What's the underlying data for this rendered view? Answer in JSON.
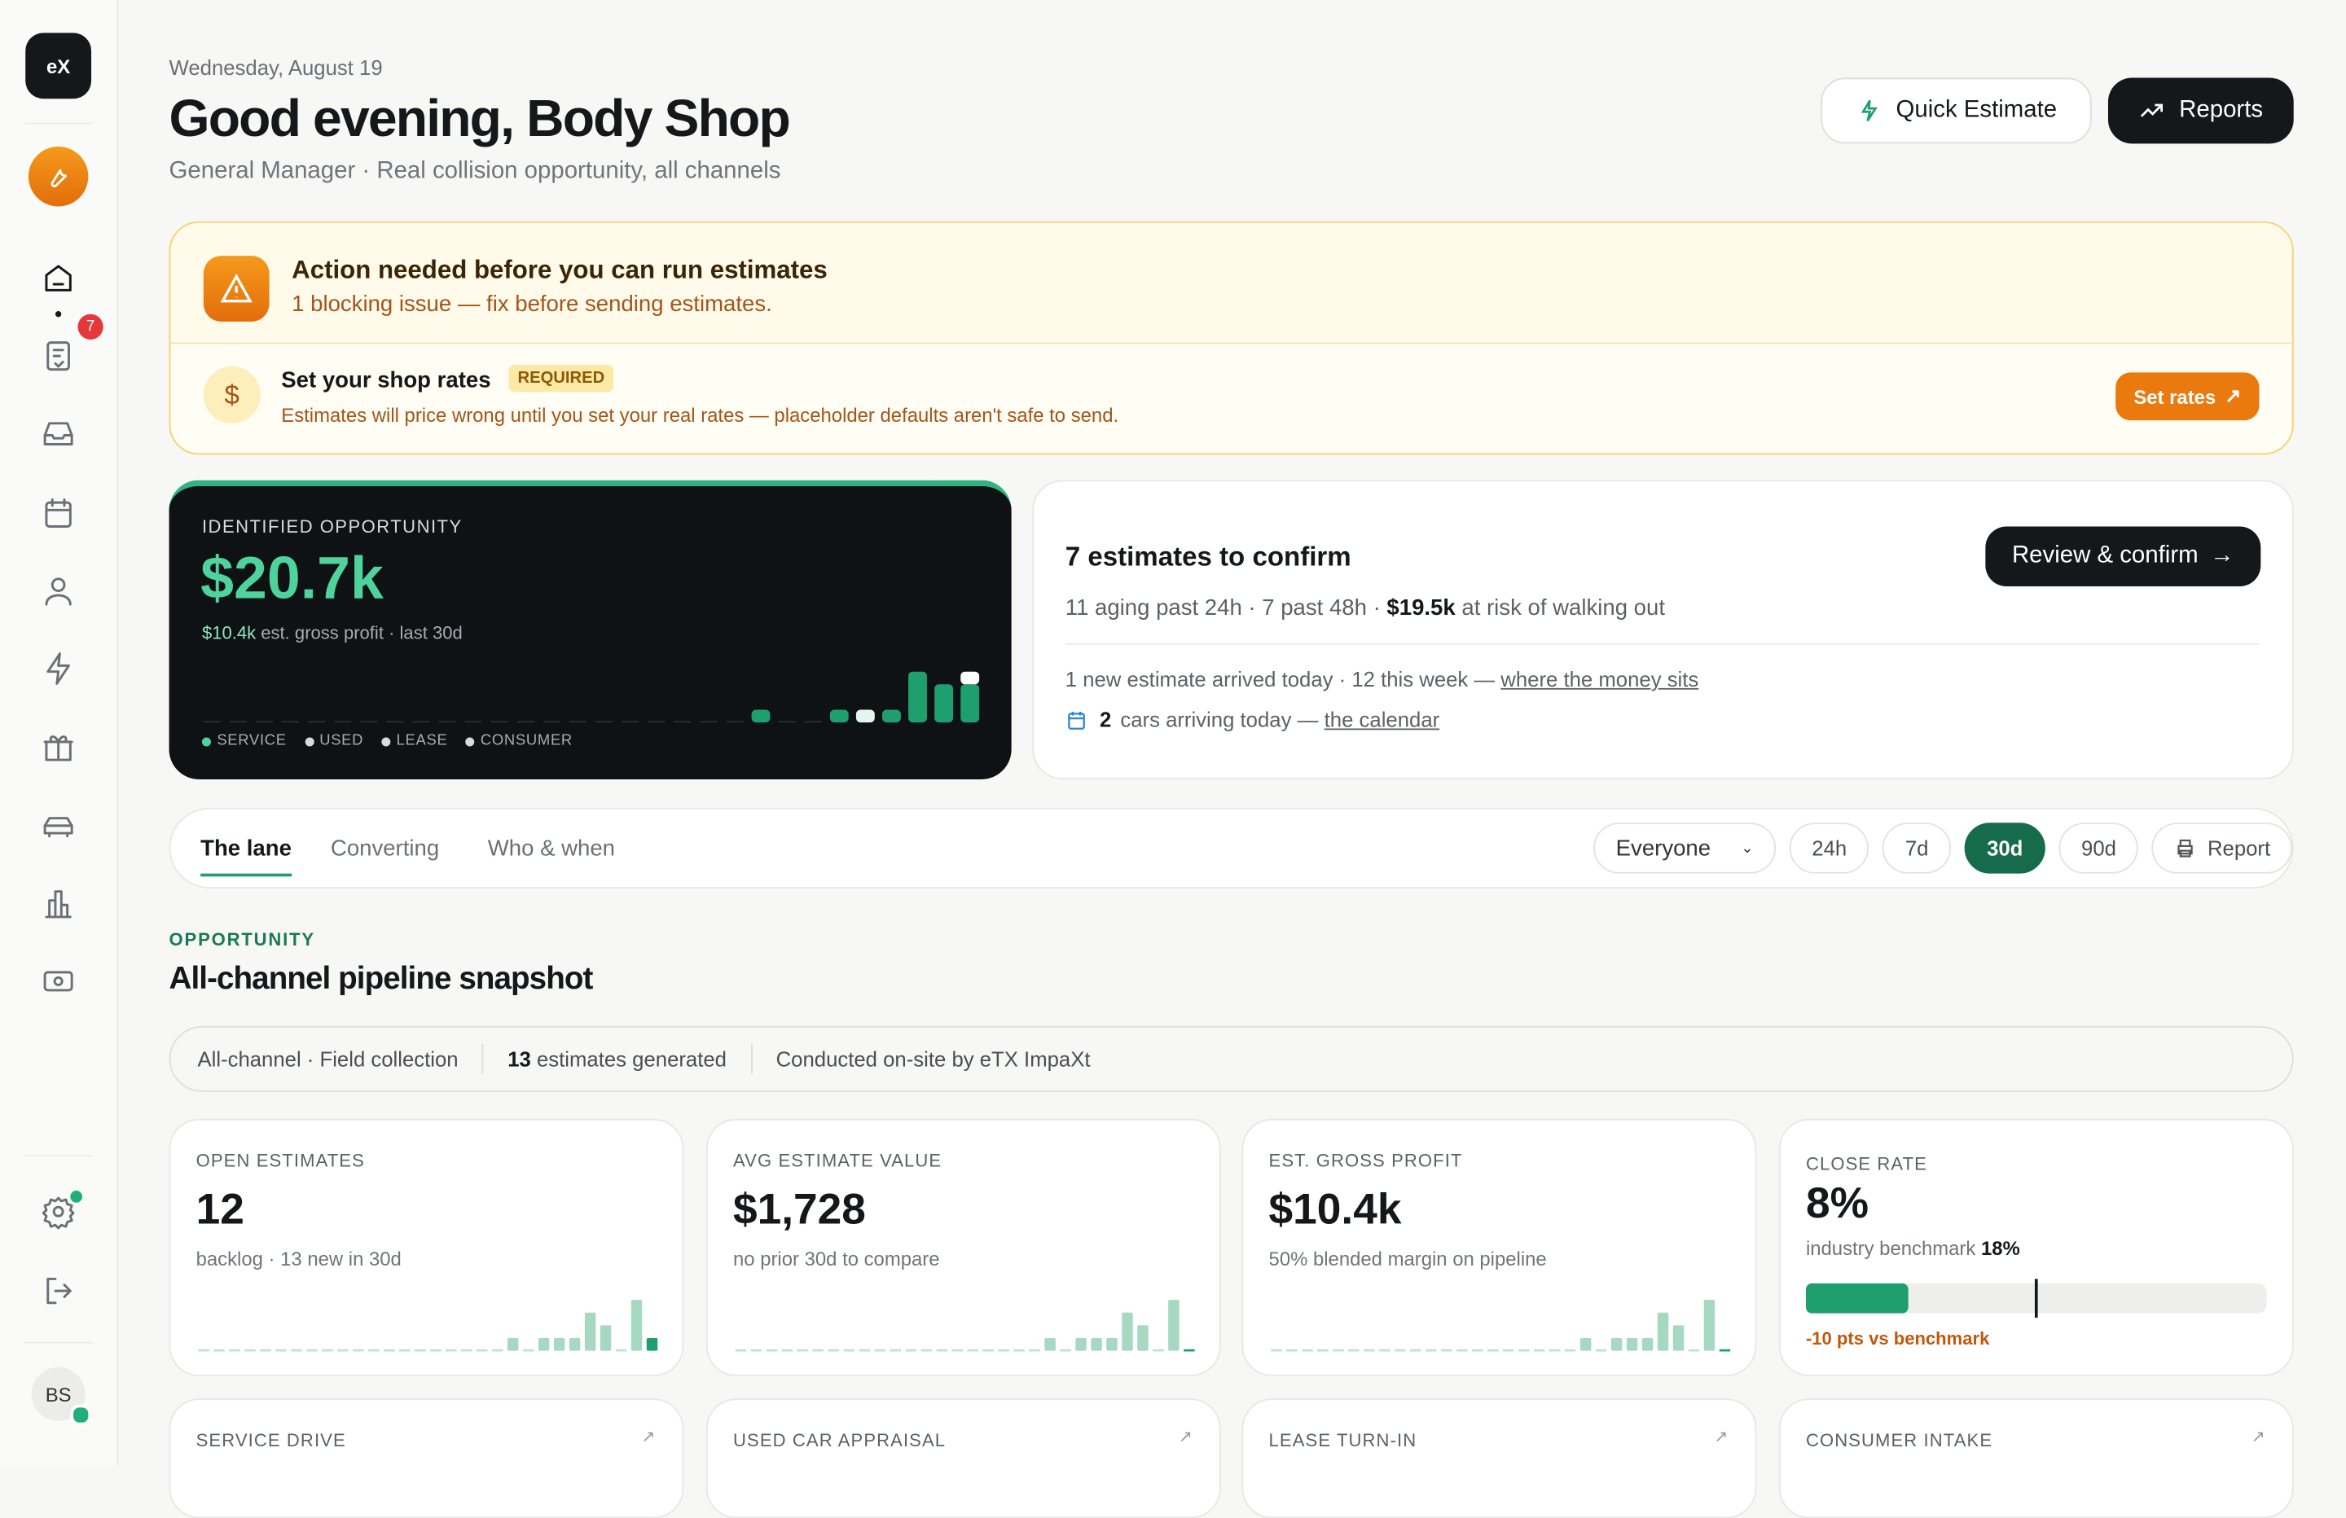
{
  "sidebar": {
    "logo": "eX",
    "badge": "7",
    "avatar": "BS"
  },
  "header": {
    "date": "Wednesday, August 19",
    "title": "Good evening, Body Shop",
    "subtitle": "General Manager · Real collision opportunity, all channels",
    "buttons": [
      "Quick Estimate",
      "Reports"
    ]
  },
  "alert": {
    "title": "Action needed before you can run estimates",
    "subtitle": "1 blocking issue — fix before sending estimates.",
    "item": {
      "icon": "$",
      "title": "Set your shop rates",
      "tag": "REQUIRED",
      "text": "Estimates will price wrong until you set your real rates — placeholder defaults aren't safe to send.",
      "button": "Set rates"
    }
  },
  "opportunity": {
    "label": "IDENTIFIED OPPORTUNITY",
    "value": "$20.7k",
    "profit": "$10.4k",
    "profit_note": "est. gross profit · last 30d",
    "chart_data": {
      "type": "stacked-bar",
      "series": [
        {
          "name": "SERVICE",
          "color": "#1f9e6e",
          "values": [
            0,
            0,
            0,
            0,
            0,
            0,
            0,
            0,
            0,
            0,
            0,
            0,
            0,
            0,
            0,
            0,
            0,
            0,
            0,
            0,
            0,
            1,
            0,
            0,
            1,
            0,
            1,
            4,
            3,
            3
          ]
        },
        {
          "name": "USED",
          "color": "#8fd6b8",
          "values": [
            0,
            0,
            0,
            0,
            0,
            0,
            0,
            0,
            0,
            0,
            0,
            0,
            0,
            0,
            0,
            0,
            0,
            0,
            0,
            0,
            0,
            0,
            0,
            0,
            0,
            0,
            0,
            0,
            0,
            0
          ]
        },
        {
          "name": "LEASE",
          "color": "#e6f4ee",
          "values": [
            0,
            0,
            0,
            0,
            0,
            0,
            0,
            0,
            0,
            0,
            0,
            0,
            0,
            0,
            0,
            0,
            0,
            0,
            0,
            0,
            0,
            0,
            0,
            0,
            0,
            1,
            0,
            0,
            0,
            0
          ]
        },
        {
          "name": "CONSUMER",
          "color": "#ffffff",
          "values": [
            0,
            0,
            0,
            0,
            0,
            0,
            0,
            0,
            0,
            0,
            0,
            0,
            0,
            0,
            0,
            0,
            0,
            0,
            0,
            0,
            0,
            0,
            0,
            0,
            0,
            0,
            0,
            0,
            0,
            1
          ]
        }
      ]
    }
  },
  "confirm": {
    "title": "7 estimates to confirm",
    "button": "Review & confirm",
    "line1a": "11 aging past 24h · 7 past 48h · ",
    "line1b": "$19.5k",
    "line1c": " at risk of walking out",
    "line2a": "1 new estimate arrived today · 12 this week — ",
    "line2b": "where the money sits",
    "line3a": "2",
    "line3b": "cars arriving today — ",
    "line3c": "the calendar"
  },
  "tabs": [
    "The lane",
    "Converting",
    "Who & when"
  ],
  "filters": {
    "people": "Everyone",
    "ranges": [
      "24h",
      "7d",
      "30d",
      "90d"
    ],
    "report": "Report"
  },
  "section": {
    "eyebrow": "OPPORTUNITY",
    "title": "All-channel pipeline snapshot"
  },
  "infobar": {
    "a": "All-channel · Field collection",
    "b_num": "13",
    "b_text": "estimates generated",
    "c": "Conducted on-site by eTX ImpaXt"
  },
  "kpis": [
    {
      "label": "OPEN ESTIMATES",
      "value": "12",
      "note": "backlog · 13 new in 30d",
      "spark": [
        0,
        0,
        0,
        0,
        0,
        0,
        0,
        0,
        0,
        0,
        0,
        0,
        0,
        0,
        0,
        0,
        0,
        0,
        0,
        0,
        1,
        0,
        1,
        1,
        1,
        3,
        2,
        0,
        4,
        1
      ]
    },
    {
      "label": "AVG ESTIMATE VALUE",
      "value": "$1,728",
      "note": "no prior 30d to compare",
      "spark": [
        0,
        0,
        0,
        0,
        0,
        0,
        0,
        0,
        0,
        0,
        0,
        0,
        0,
        0,
        0,
        0,
        0,
        0,
        0,
        0,
        1,
        0,
        1,
        1,
        1,
        3,
        2,
        0,
        4,
        0
      ]
    },
    {
      "label": "EST. GROSS PROFIT",
      "value": "$10.4k",
      "note": "50% blended margin on pipeline",
      "spark": [
        0,
        0,
        0,
        0,
        0,
        0,
        0,
        0,
        0,
        0,
        0,
        0,
        0,
        0,
        0,
        0,
        0,
        0,
        0,
        0,
        1,
        0,
        1,
        1,
        1,
        3,
        2,
        0,
        4,
        0
      ]
    }
  ],
  "close_rate": {
    "label": "CLOSE RATE",
    "value": 8,
    "value_label": "8%",
    "note": "industry benchmark",
    "benchmark": 18,
    "benchmark_label": "18%",
    "xlim": [
      0,
      36
    ],
    "delta": "-10 pts vs benchmark"
  },
  "channels": [
    "SERVICE DRIVE",
    "USED CAR APPRAISAL",
    "LEASE TURN-IN",
    "CONSUMER INTAKE"
  ]
}
